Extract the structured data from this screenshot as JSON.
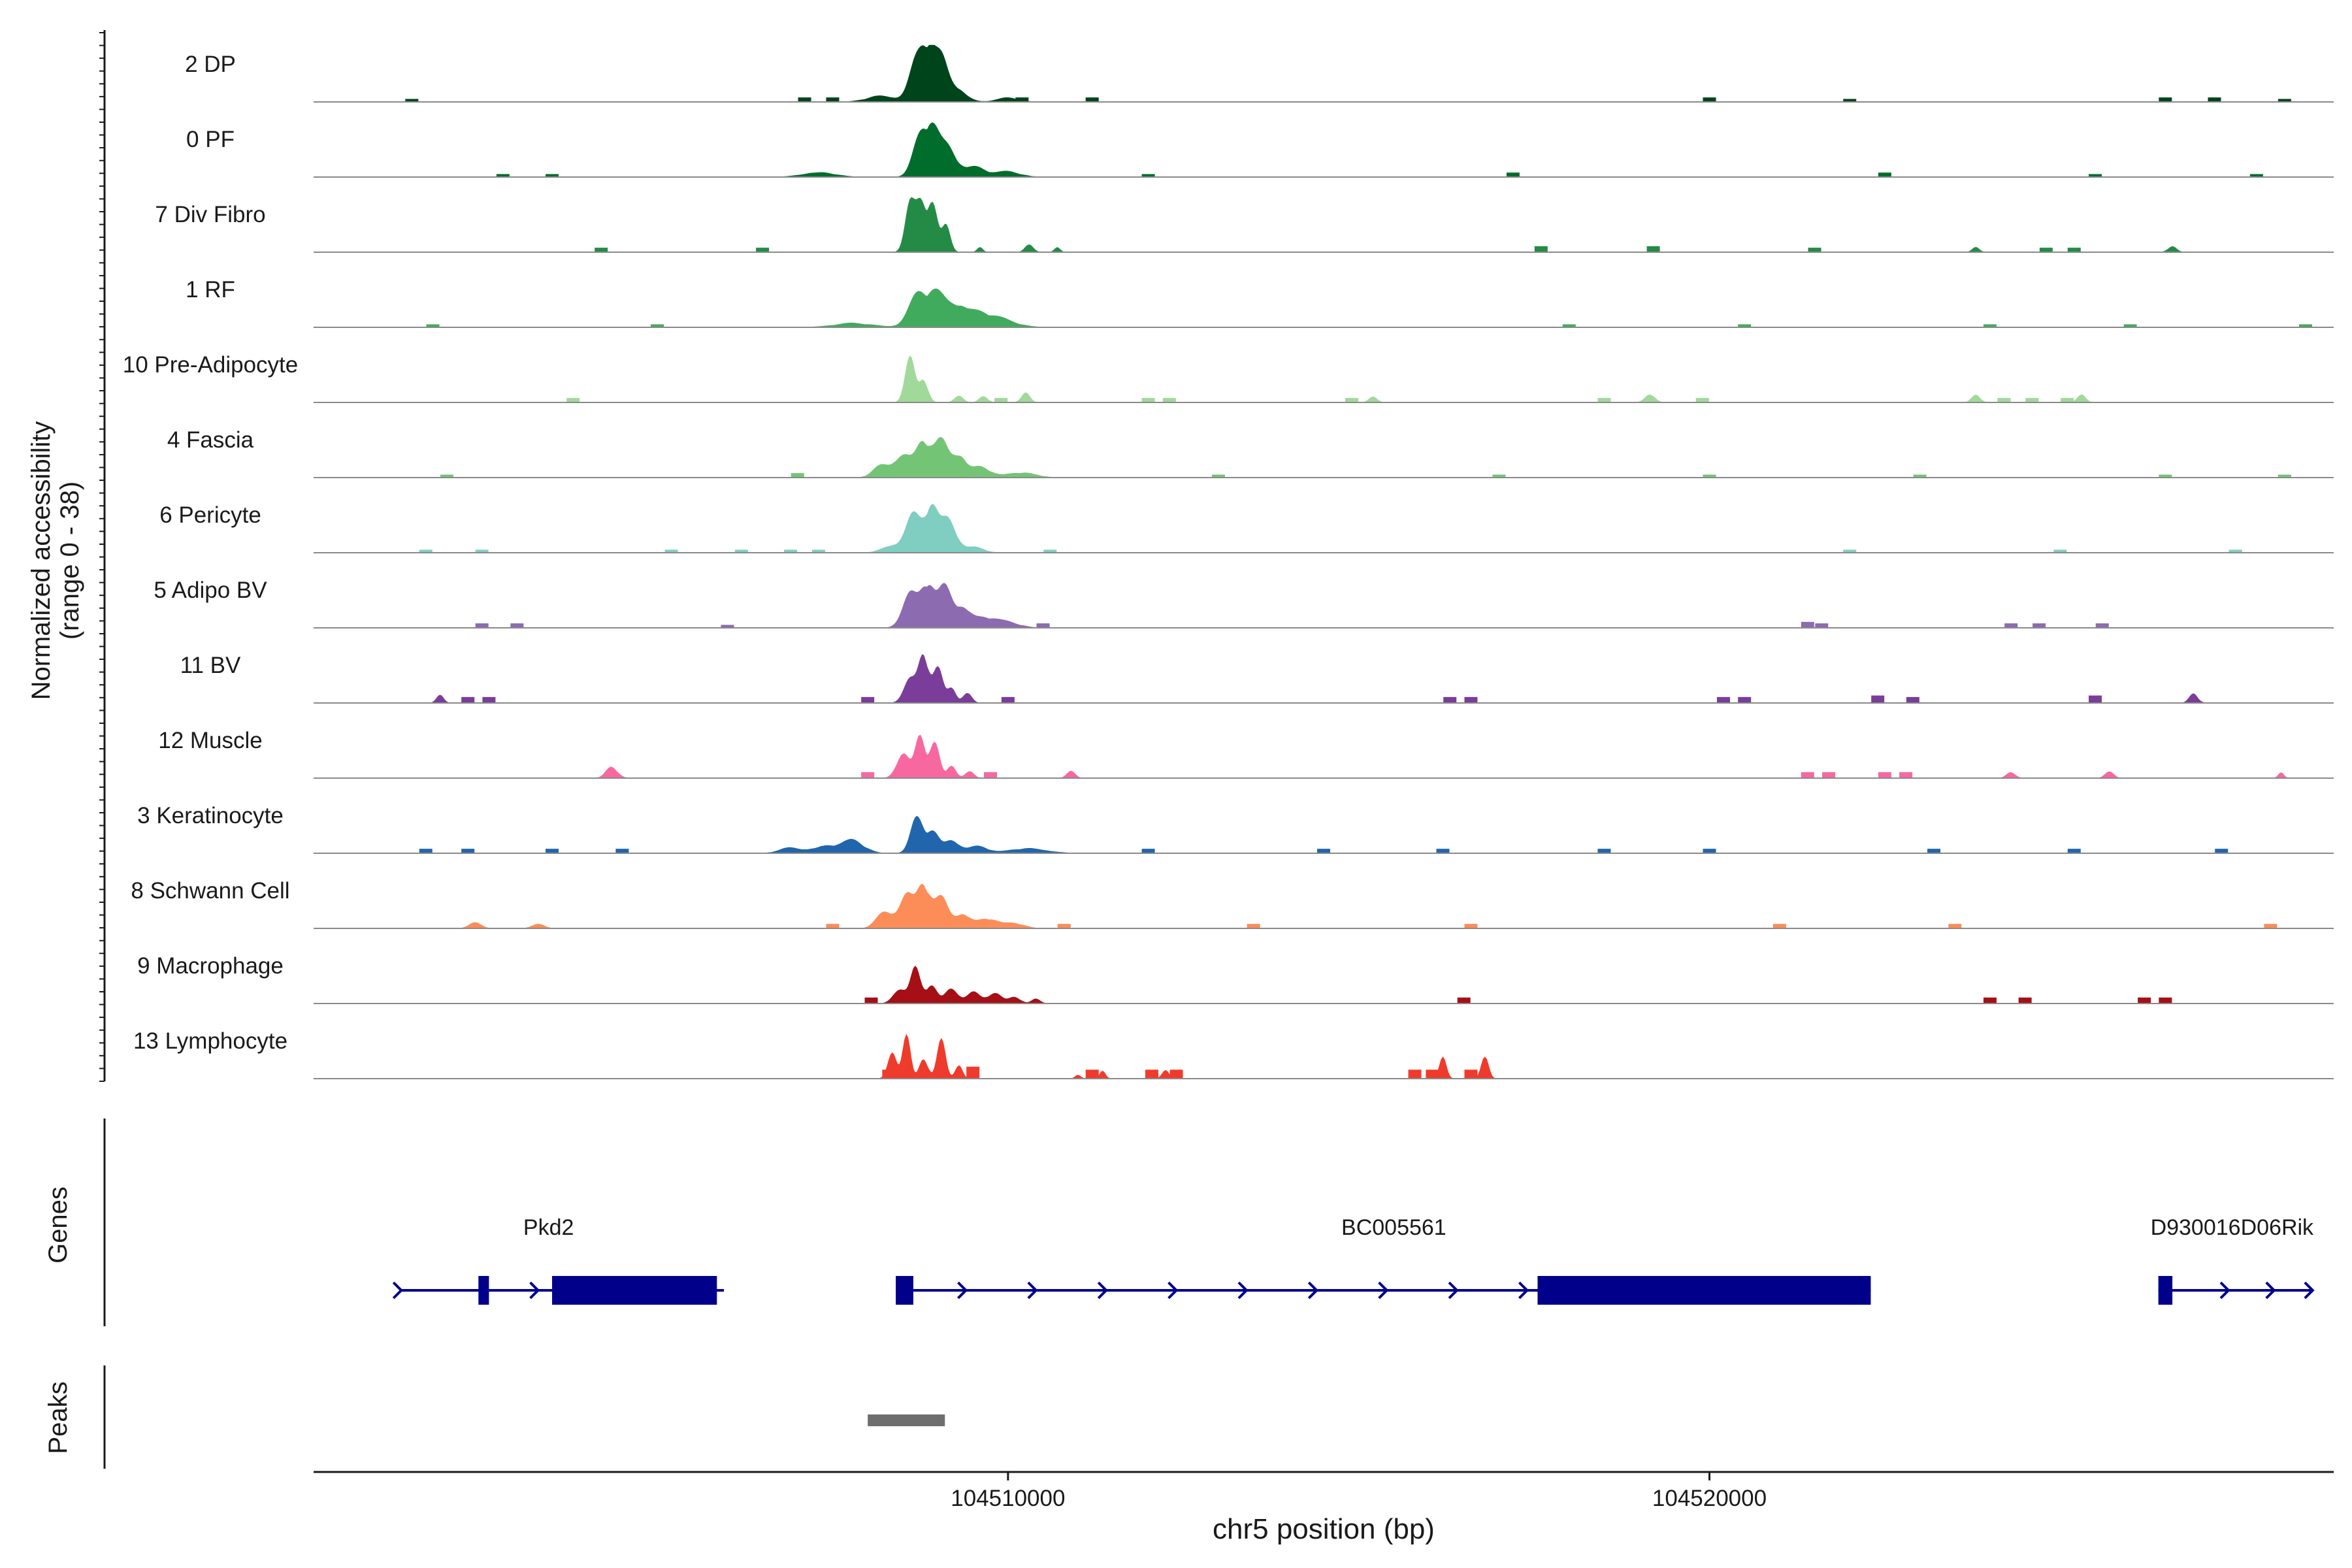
{
  "chart_data": {
    "type": "area",
    "title": "",
    "ylabel_line1": "Normalized accessibility",
    "ylabel_line2": "(range 0 - 38)",
    "ylim": [
      0,
      38
    ],
    "xlabel": "chr5 position (bp)",
    "xlim": [
      104500100,
      104528900
    ],
    "x_ticks": [
      104510000,
      104520000
    ],
    "x_tick_labels": [
      "104510000",
      "104520000"
    ],
    "tracks": [
      {
        "name": "2 DP",
        "color": "#00441b",
        "peaks": [
          [
            104508700,
            30,
            110
          ],
          [
            104508870,
            36,
            90
          ],
          [
            104509050,
            26,
            90
          ],
          [
            104509250,
            12,
            140
          ],
          [
            104508200,
            5,
            200
          ],
          [
            104510000,
            3,
            160
          ]
        ],
        "islands": [
          [
            104501500,
            2
          ],
          [
            104507100,
            3
          ],
          [
            104507500,
            3
          ],
          [
            104510200,
            3
          ],
          [
            104511200,
            3
          ],
          [
            104520000,
            3
          ],
          [
            104522000,
            2
          ],
          [
            104526500,
            3
          ],
          [
            104527200,
            3
          ],
          [
            104528200,
            2
          ]
        ]
      },
      {
        "name": "0 PF",
        "color": "#006d2c",
        "peaks": [
          [
            104508750,
            28,
            110
          ],
          [
            104508920,
            31,
            100
          ],
          [
            104509150,
            22,
            110
          ],
          [
            104509500,
            9,
            160
          ],
          [
            104507300,
            4,
            220
          ],
          [
            104510000,
            4,
            180
          ]
        ],
        "islands": [
          [
            104502800,
            2
          ],
          [
            104503500,
            2
          ],
          [
            104512000,
            2
          ],
          [
            104517200,
            3
          ],
          [
            104522500,
            3
          ],
          [
            104525500,
            2
          ],
          [
            104527800,
            2
          ]
        ]
      },
      {
        "name": "7 Div Fibro",
        "color": "#238b45",
        "peaks": [
          [
            104508600,
            36,
            70
          ],
          [
            104508760,
            36,
            70
          ],
          [
            104508920,
            36,
            70
          ],
          [
            104509120,
            20,
            60
          ],
          [
            104509600,
            4,
            40
          ],
          [
            104510300,
            6,
            60
          ],
          [
            104510700,
            4,
            40
          ],
          [
            104523800,
            4,
            50
          ],
          [
            104526600,
            5,
            60
          ]
        ],
        "islands": [
          [
            104504200,
            3
          ],
          [
            104506500,
            3
          ],
          [
            104517600,
            4
          ],
          [
            104519200,
            4
          ],
          [
            104521500,
            3
          ],
          [
            104524800,
            3
          ],
          [
            104525200,
            3
          ]
        ]
      },
      {
        "name": "1 RF",
        "color": "#41ab5d",
        "peaks": [
          [
            104508700,
            22,
            130
          ],
          [
            104508950,
            22,
            130
          ],
          [
            104509250,
            15,
            160
          ],
          [
            104509550,
            10,
            200
          ],
          [
            104509900,
            5,
            240
          ],
          [
            104507800,
            3,
            300
          ]
        ],
        "islands": [
          [
            104501800,
            2
          ],
          [
            104505000,
            2
          ],
          [
            104518000,
            2
          ],
          [
            104520500,
            2
          ],
          [
            104524000,
            2
          ],
          [
            104526000,
            2
          ],
          [
            104528500,
            2
          ]
        ]
      },
      {
        "name": "10 Pre-Adipocyte",
        "color": "#a1d99b",
        "peaks": [
          [
            104508600,
            34,
            70
          ],
          [
            104508800,
            18,
            60
          ],
          [
            104509300,
            6,
            60
          ],
          [
            104509650,
            5,
            60
          ],
          [
            104510250,
            8,
            60
          ],
          [
            104515200,
            4,
            60
          ],
          [
            104519150,
            7,
            70
          ],
          [
            104523800,
            6,
            60
          ],
          [
            104525300,
            6,
            60
          ]
        ],
        "islands": [
          [
            104503800,
            3
          ],
          [
            104509900,
            3
          ],
          [
            104512000,
            3
          ],
          [
            104512300,
            3
          ],
          [
            104514900,
            3
          ],
          [
            104518500,
            3
          ],
          [
            104519900,
            3
          ],
          [
            104525100,
            3
          ],
          [
            104524600,
            3
          ],
          [
            104524200,
            3
          ]
        ]
      },
      {
        "name": "4 Fascia",
        "color": "#74c476",
        "peaks": [
          [
            104508500,
            18,
            120
          ],
          [
            104508800,
            28,
            100
          ],
          [
            104509050,
            26,
            100
          ],
          [
            104509300,
            18,
            100
          ],
          [
            104509600,
            9,
            140
          ],
          [
            104508200,
            10,
            120
          ],
          [
            104510200,
            4,
            200
          ]
        ],
        "islands": [
          [
            104502000,
            2
          ],
          [
            104507000,
            3
          ],
          [
            104513000,
            2
          ],
          [
            104517000,
            2
          ],
          [
            104520000,
            2
          ],
          [
            104523000,
            2
          ],
          [
            104526500,
            2
          ],
          [
            104528200,
            2
          ]
        ]
      },
      {
        "name": "6 Pericyte",
        "color": "#80cdc1",
        "peaks": [
          [
            104508650,
            28,
            110
          ],
          [
            104508900,
            34,
            90
          ],
          [
            104509150,
            26,
            110
          ],
          [
            104508350,
            6,
            140
          ],
          [
            104509500,
            5,
            140
          ]
        ],
        "islands": [
          [
            104501700,
            2
          ],
          [
            104502500,
            2
          ],
          [
            104505200,
            2
          ],
          [
            104506200,
            2
          ],
          [
            104506900,
            2
          ],
          [
            104507300,
            2
          ],
          [
            104510600,
            2
          ],
          [
            104522000,
            2
          ],
          [
            104525000,
            2
          ],
          [
            104527500,
            2
          ]
        ]
      },
      {
        "name": "5 Adipo BV",
        "color": "#8c6bb1",
        "peaks": [
          [
            104508600,
            26,
            110
          ],
          [
            104508850,
            34,
            90
          ],
          [
            104509100,
            30,
            100
          ],
          [
            104509350,
            16,
            110
          ],
          [
            104509650,
            8,
            160
          ],
          [
            104510000,
            4,
            180
          ]
        ],
        "islands": [
          [
            104502500,
            3
          ],
          [
            104503000,
            3
          ],
          [
            104506000,
            2
          ],
          [
            104510500,
            3
          ],
          [
            104521400,
            4
          ],
          [
            104521600,
            3
          ],
          [
            104524300,
            3
          ],
          [
            104524700,
            3
          ],
          [
            104525600,
            3
          ]
        ]
      },
      {
        "name": "11 BV",
        "color": "#7a3d9a",
        "peaks": [
          [
            104508600,
            18,
            90
          ],
          [
            104508800,
            38,
            70
          ],
          [
            104509000,
            25,
            70
          ],
          [
            104509200,
            12,
            60
          ],
          [
            104509420,
            9,
            60
          ],
          [
            104501900,
            7,
            50
          ],
          [
            104526900,
            8,
            60
          ]
        ],
        "islands": [
          [
            104508000,
            4
          ],
          [
            104502300,
            4
          ],
          [
            104502600,
            4
          ],
          [
            104510000,
            4
          ],
          [
            104516300,
            4
          ],
          [
            104516600,
            4
          ],
          [
            104520200,
            4
          ],
          [
            104520500,
            4
          ],
          [
            104522400,
            5
          ],
          [
            104522900,
            4
          ],
          [
            104525500,
            5
          ]
        ]
      },
      {
        "name": "12 Muscle",
        "color": "#f768a1",
        "peaks": [
          [
            104508500,
            20,
            90
          ],
          [
            104508750,
            32,
            70
          ],
          [
            104508950,
            26,
            70
          ],
          [
            104509200,
            10,
            60
          ],
          [
            104509450,
            6,
            60
          ],
          [
            104504350,
            9,
            80
          ],
          [
            104510900,
            5,
            60
          ],
          [
            104524300,
            5,
            60
          ],
          [
            104525700,
            6,
            60
          ],
          [
            104528150,
            4,
            40
          ]
        ],
        "islands": [
          [
            104508000,
            4
          ],
          [
            104509750,
            4
          ],
          [
            104521400,
            4
          ],
          [
            104521700,
            4
          ],
          [
            104522500,
            4
          ],
          [
            104522800,
            4
          ]
        ]
      },
      {
        "name": "3 Keratinocyte",
        "color": "#2166ac",
        "peaks": [
          [
            104508700,
            26,
            90
          ],
          [
            104508920,
            16,
            90
          ],
          [
            104509200,
            10,
            100
          ],
          [
            104509550,
            6,
            150
          ],
          [
            104507400,
            6,
            180
          ],
          [
            104507800,
            9,
            160
          ],
          [
            104506900,
            4,
            160
          ],
          [
            104510300,
            4,
            250
          ]
        ],
        "islands": [
          [
            104501700,
            3
          ],
          [
            104502300,
            3
          ],
          [
            104503500,
            3
          ],
          [
            104504500,
            3
          ],
          [
            104512000,
            3
          ],
          [
            104514500,
            3
          ],
          [
            104516200,
            3
          ],
          [
            104518500,
            3
          ],
          [
            104520000,
            3
          ],
          [
            104523200,
            3
          ],
          [
            104525200,
            3
          ],
          [
            104527300,
            3
          ]
        ]
      },
      {
        "name": "8 Schwann Cell",
        "color": "#fc8d59",
        "peaks": [
          [
            104508250,
            14,
            120
          ],
          [
            104508550,
            26,
            100
          ],
          [
            104508800,
            34,
            90
          ],
          [
            104509050,
            22,
            100
          ],
          [
            104509350,
            12,
            110
          ],
          [
            104509700,
            8,
            140
          ],
          [
            104510100,
            4,
            140
          ],
          [
            104502400,
            4,
            90
          ],
          [
            104503300,
            3,
            90
          ]
        ],
        "islands": [
          [
            104507500,
            3
          ],
          [
            104510800,
            3
          ],
          [
            104513500,
            3
          ],
          [
            104516600,
            3
          ],
          [
            104521000,
            3
          ],
          [
            104523500,
            3
          ],
          [
            104528000,
            3
          ]
        ]
      },
      {
        "name": "9 Macrophage",
        "color": "#a50f15",
        "peaks": [
          [
            104508450,
            12,
            90
          ],
          [
            104508680,
            26,
            70
          ],
          [
            104508900,
            14,
            80
          ],
          [
            104509200,
            12,
            90
          ],
          [
            104509500,
            10,
            90
          ],
          [
            104509800,
            8,
            100
          ],
          [
            104510100,
            5,
            80
          ],
          [
            104510400,
            4,
            60
          ]
        ],
        "islands": [
          [
            104508050,
            4
          ],
          [
            104516500,
            4
          ],
          [
            104524000,
            4
          ],
          [
            104524500,
            4
          ],
          [
            104526200,
            4
          ],
          [
            104526500,
            4
          ]
        ]
      },
      {
        "name": "13 Lymphocyte",
        "color": "#ef3b2c",
        "peaks": [
          [
            104508350,
            24,
            60
          ],
          [
            104508550,
            34,
            55
          ],
          [
            104508800,
            16,
            60
          ],
          [
            104509050,
            28,
            60
          ],
          [
            104509300,
            12,
            50
          ],
          [
            104516200,
            16,
            50
          ],
          [
            104516800,
            20,
            50
          ],
          [
            104511350,
            6,
            40
          ],
          [
            104512250,
            6,
            50
          ],
          [
            104511000,
            3,
            40
          ]
        ],
        "islands": [
          [
            104508300,
            6
          ],
          [
            104509500,
            8
          ],
          [
            104511200,
            6
          ],
          [
            104512050,
            6
          ],
          [
            104512400,
            6
          ],
          [
            104515800,
            6
          ],
          [
            104516050,
            6
          ],
          [
            104516600,
            6
          ]
        ]
      }
    ],
    "genes_label": "Genes",
    "genes": [
      {
        "name": "Pkd2",
        "line": [
          104501350,
          104505950
        ],
        "label_x": 104503450,
        "exons": [
          [
            104502450,
            104502600
          ],
          [
            104503500,
            104505850
          ]
        ],
        "arrows": [
          104501350,
          104503300
        ]
      },
      {
        "name": "BC005561",
        "line": [
          104508400,
          104522300
        ],
        "label_x": 104515500,
        "exons": [
          [
            104508400,
            104508650
          ],
          [
            104517550,
            104522300
          ]
        ],
        "arrows": [
          104509400,
          104510400,
          104511400,
          104512400,
          104513400,
          104514400,
          104515400,
          104516400,
          104517400
        ]
      },
      {
        "name": "D930016D06Rik",
        "line": [
          104526400,
          104528600
        ],
        "label_x": 104527450,
        "exons": [
          [
            104526400,
            104526600
          ]
        ],
        "arrows": [
          104527400,
          104528050,
          104528600
        ]
      }
    ],
    "peaks_label": "Peaks",
    "peak_regions": [
      [
        104508000,
        104509100
      ]
    ]
  },
  "colors": {
    "gene": "#00008b",
    "peak_region": "#6e6e6e",
    "baseline": "#8a8a8a",
    "axis": "#1a1a1a"
  }
}
